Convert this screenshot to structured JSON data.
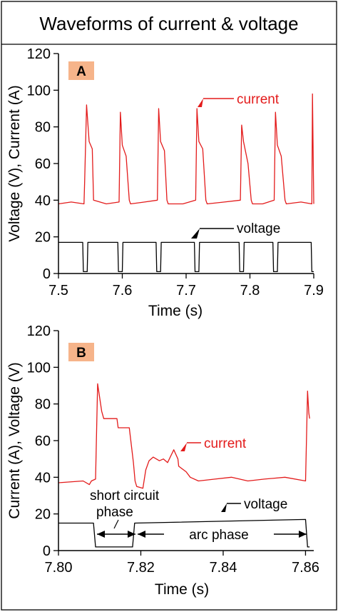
{
  "title": "Waveforms of current & voltage",
  "colors": {
    "current": "#e31b1b",
    "voltage": "#000000",
    "panel_label_bg": "#f6b48a"
  },
  "chart_data": [
    {
      "panel": "A",
      "type": "line",
      "xlabel": "Time (s)",
      "ylabel": "Voltage (V), Current (A)",
      "xlim": [
        7.5,
        7.9
      ],
      "ylim": [
        0,
        120
      ],
      "xticks": [
        "7.5",
        "7.6",
        "7.7",
        "7.8",
        "7.9"
      ],
      "yticks": [
        "0",
        "20",
        "40",
        "60",
        "80",
        "100",
        "120"
      ],
      "series": [
        {
          "name": "current",
          "x": [
            7.5,
            7.52,
            7.54,
            7.541,
            7.544,
            7.548,
            7.553,
            7.555,
            7.575,
            7.595,
            7.597,
            7.6,
            7.606,
            7.611,
            7.613,
            7.635,
            7.655,
            7.657,
            7.66,
            7.666,
            7.67,
            7.672,
            7.695,
            7.715,
            7.717,
            7.72,
            7.726,
            7.731,
            7.733,
            7.76,
            7.785,
            7.787,
            7.79,
            7.797,
            7.802,
            7.804,
            7.82,
            7.838,
            7.84,
            7.843,
            7.849,
            7.855,
            7.857,
            7.88,
            7.897,
            7.898,
            7.9
          ],
          "values": [
            38,
            39,
            38,
            50,
            92,
            72,
            68,
            40,
            38,
            39,
            88,
            70,
            64,
            40,
            38,
            39,
            40,
            90,
            72,
            67,
            40,
            38,
            38,
            40,
            90,
            72,
            68,
            40,
            38,
            39,
            40,
            81,
            72,
            60,
            40,
            38,
            38,
            40,
            88,
            70,
            64,
            40,
            38,
            39,
            38,
            98,
            38
          ]
        },
        {
          "name": "voltage",
          "x": [
            7.5,
            7.538,
            7.539,
            7.545,
            7.546,
            7.593,
            7.594,
            7.6,
            7.601,
            7.653,
            7.654,
            7.66,
            7.661,
            7.713,
            7.714,
            7.72,
            7.721,
            7.783,
            7.784,
            7.79,
            7.791,
            7.836,
            7.837,
            7.843,
            7.844,
            7.896,
            7.897,
            7.9
          ],
          "values": [
            17,
            17,
            1,
            1,
            17,
            17,
            1,
            1,
            17,
            17,
            1,
            1,
            17,
            17,
            1,
            1,
            17,
            17,
            1,
            1,
            17,
            17,
            1,
            1,
            17,
            17,
            1,
            1
          ]
        }
      ],
      "annotations": {
        "current": "current",
        "voltage": "voltage"
      }
    },
    {
      "panel": "B",
      "type": "line",
      "xlabel": "Time (s)",
      "ylabel": "Current (A), Voltage (V)",
      "xlim": [
        7.8,
        7.862
      ],
      "ylim": [
        0,
        120
      ],
      "xticks": [
        "7.80",
        "7.82",
        "7.84",
        "7.86"
      ],
      "yticks": [
        "0",
        "20",
        "40",
        "60",
        "80",
        "100",
        "120"
      ],
      "series": [
        {
          "name": "current",
          "x": [
            7.8,
            7.806,
            7.8075,
            7.808,
            7.809,
            7.8095,
            7.8105,
            7.811,
            7.8142,
            7.8145,
            7.8172,
            7.8182,
            7.8186,
            7.819,
            7.8205,
            7.8212,
            7.822,
            7.823,
            7.8245,
            7.8255,
            7.8265,
            7.828,
            7.829,
            7.8292,
            7.831,
            7.832,
            7.834,
            7.838,
            7.842,
            7.846,
            7.85,
            7.855,
            7.86,
            7.8605,
            7.8608,
            7.861
          ],
          "values": [
            37,
            38,
            36,
            38,
            39,
            91,
            76,
            72,
            72,
            67,
            67,
            48,
            38,
            35,
            34,
            44,
            49,
            51,
            49,
            50,
            48,
            55,
            50,
            46,
            43,
            40,
            38,
            39,
            40,
            38,
            39,
            40,
            38,
            87,
            75,
            72
          ]
        },
        {
          "name": "voltage",
          "x": [
            7.8,
            7.8085,
            7.809,
            7.818,
            7.8185,
            7.86,
            7.8605,
            7.861
          ],
          "values": [
            15,
            15,
            2,
            2,
            15,
            17,
            2,
            2
          ]
        }
      ],
      "annotations": {
        "current": "current",
        "voltage": "voltage",
        "short": [
          "short circuit",
          "phase"
        ],
        "arc": "arc phase"
      }
    }
  ]
}
